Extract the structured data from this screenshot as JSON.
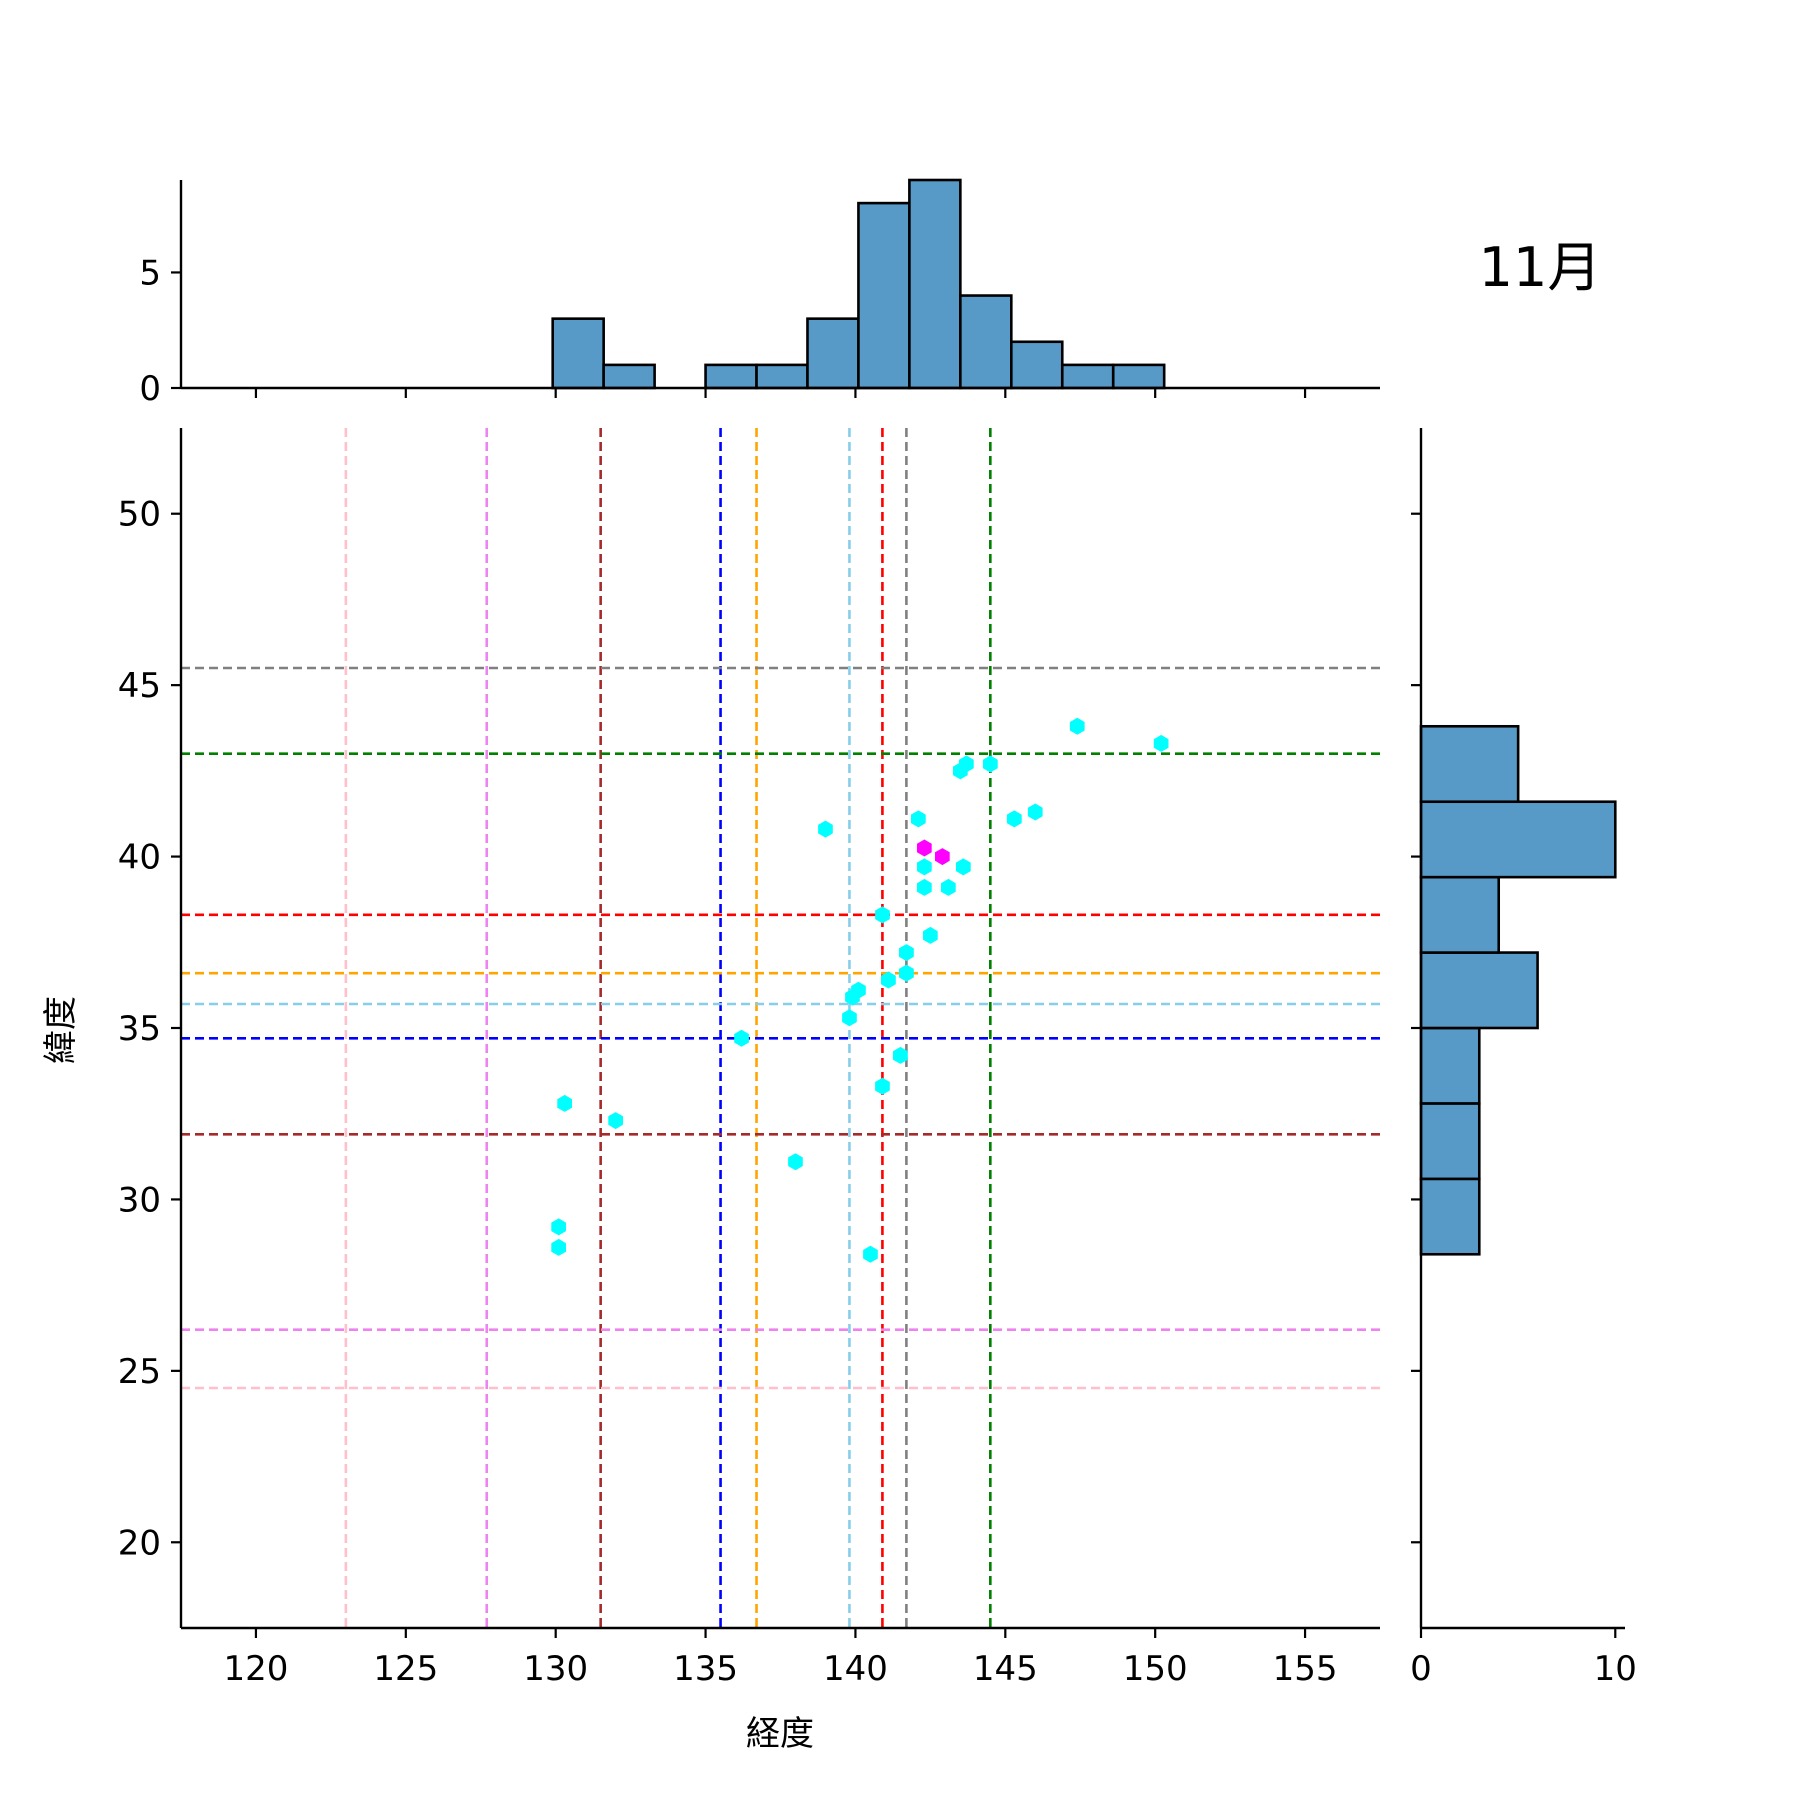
{
  "chart_data": {
    "type": "scatter",
    "title": "11月",
    "xlabel": "経度",
    "ylabel": "緯度",
    "xlim": [
      117.5,
      157.5
    ],
    "ylim": [
      17.5,
      52.5
    ],
    "xticks": [
      120,
      125,
      130,
      135,
      140,
      145,
      150,
      155
    ],
    "yticks": [
      20,
      25,
      30,
      35,
      40,
      45,
      50
    ],
    "points": {
      "color": "#00ffff",
      "x": [
        147.4,
        150.2,
        143.7,
        143.5,
        144.5,
        145.3,
        146.0,
        142.1,
        139.0,
        142.3,
        143.6,
        142.3,
        143.1,
        140.9,
        142.5,
        141.7,
        141.7,
        141.1,
        140.1,
        139.9,
        139.8,
        136.2,
        141.5,
        140.9,
        130.3,
        132.0,
        138.0,
        130.1,
        130.1,
        140.5
      ],
      "y": [
        43.8,
        43.3,
        42.7,
        42.5,
        42.7,
        41.1,
        41.3,
        41.1,
        40.8,
        39.7,
        39.7,
        39.1,
        39.1,
        38.3,
        37.7,
        37.2,
        36.6,
        36.4,
        36.1,
        35.9,
        35.3,
        34.7,
        34.2,
        33.3,
        32.8,
        32.3,
        31.1,
        29.2,
        28.6,
        28.4
      ]
    },
    "highlight_points": {
      "color": "#ff00ff",
      "x": [
        142.3,
        142.9
      ],
      "y": [
        40.25,
        40.0
      ]
    },
    "vertical_lines": [
      {
        "x": 123.0,
        "color": "#ffc0cb"
      },
      {
        "x": 127.7,
        "color": "#ee82ee"
      },
      {
        "x": 131.5,
        "color": "#a52a2a"
      },
      {
        "x": 135.5,
        "color": "#0000ff"
      },
      {
        "x": 136.7,
        "color": "#ffa500"
      },
      {
        "x": 139.8,
        "color": "#87ceeb"
      },
      {
        "x": 140.9,
        "color": "#ff0000"
      },
      {
        "x": 141.7,
        "color": "#808080"
      },
      {
        "x": 144.5,
        "color": "#008000"
      }
    ],
    "horizontal_lines": [
      {
        "y": 45.5,
        "color": "#808080"
      },
      {
        "y": 43.0,
        "color": "#008000"
      },
      {
        "y": 38.3,
        "color": "#ff0000"
      },
      {
        "y": 36.6,
        "color": "#ffa500"
      },
      {
        "y": 35.7,
        "color": "#87ceeb"
      },
      {
        "y": 34.7,
        "color": "#0000ff"
      },
      {
        "y": 31.9,
        "color": "#a52a2a"
      },
      {
        "y": 26.2,
        "color": "#ee82ee"
      },
      {
        "y": 24.5,
        "color": "#ffc0cb"
      }
    ],
    "top_histogram": {
      "bar_color": "#5799c7",
      "ylim": [
        0,
        9
      ],
      "yticks": [
        0,
        5
      ],
      "bins": [
        {
          "x0": 129.9,
          "x1": 131.6,
          "count": 3
        },
        {
          "x0": 131.6,
          "x1": 133.3,
          "count": 1
        },
        {
          "x0": 133.3,
          "x1": 135.0,
          "count": 0
        },
        {
          "x0": 135.0,
          "x1": 136.7,
          "count": 1
        },
        {
          "x0": 136.7,
          "x1": 138.4,
          "count": 1
        },
        {
          "x0": 138.4,
          "x1": 140.1,
          "count": 3
        },
        {
          "x0": 140.1,
          "x1": 141.8,
          "count": 8
        },
        {
          "x0": 141.8,
          "x1": 143.5,
          "count": 9
        },
        {
          "x0": 143.5,
          "x1": 145.2,
          "count": 4
        },
        {
          "x0": 145.2,
          "x1": 146.9,
          "count": 2
        },
        {
          "x0": 146.9,
          "x1": 148.6,
          "count": 1
        },
        {
          "x0": 148.6,
          "x1": 150.3,
          "count": 1
        }
      ]
    },
    "right_histogram": {
      "bar_color": "#5799c7",
      "xlim": [
        0,
        10.5
      ],
      "xticks": [
        0,
        10
      ],
      "bins": [
        {
          "y0": 28.4,
          "y1": 30.6,
          "count": 3
        },
        {
          "y0": 30.6,
          "y1": 32.8,
          "count": 3
        },
        {
          "y0": 32.8,
          "y1": 35.0,
          "count": 3
        },
        {
          "y0": 35.0,
          "y1": 37.2,
          "count": 6
        },
        {
          "y0": 37.2,
          "y1": 39.4,
          "count": 4
        },
        {
          "y0": 39.4,
          "y1": 41.6,
          "count": 10
        },
        {
          "y0": 41.6,
          "y1": 43.8,
          "count": 5
        }
      ]
    }
  }
}
